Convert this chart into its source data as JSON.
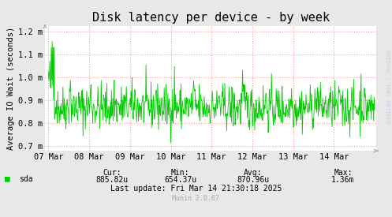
{
  "title": "Disk latency per device - by week",
  "ylabel": "Average IO Wait (seconds)",
  "background_color": "#e8e8e8",
  "plot_bg_color": "#ffffff",
  "grid_color": "#ff9999",
  "line_color": "#00cc00",
  "ylim": [
    0.00068,
    0.001225
  ],
  "yticks": [
    0.0007,
    0.0008,
    0.0009,
    0.001,
    0.0011,
    0.0012
  ],
  "ytick_labels": [
    "0.7 m",
    "0.8 m",
    "0.9 m",
    "1.0 m",
    "1.1 m",
    "1.2 m"
  ],
  "date_labels": [
    "07 Mar",
    "08 Mar",
    "09 Mar",
    "10 Mar",
    "11 Mar",
    "12 Mar",
    "13 Mar",
    "14 Mar"
  ],
  "legend_label": "sda",
  "legend_color": "#00cc00",
  "cur_label": "Cur:",
  "cur_val": "885.82u",
  "min_label": "Min:",
  "min_val": "654.37u",
  "avg_label": "Avg:",
  "avg_val": "870.96u",
  "max_label": "Max:",
  "max_val": "1.36m",
  "last_update": "Last update: Fri Mar 14 21:30:18 2025",
  "munin_label": "Munin 2.0.67",
  "watermark": "RRDTOOL / TOBI OETIKER",
  "title_fontsize": 11,
  "axis_label_fontsize": 7.5,
  "tick_fontsize": 7.5
}
